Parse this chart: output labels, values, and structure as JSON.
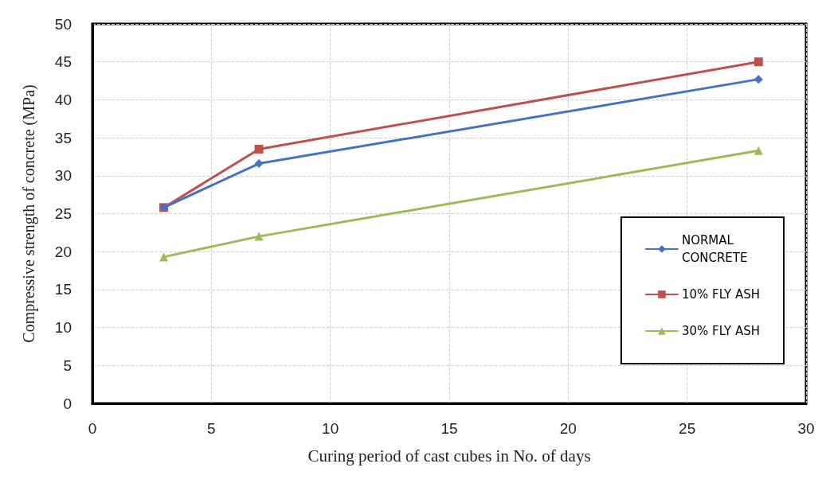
{
  "chart_data": {
    "type": "line",
    "xlabel": "Curing period of cast cubes in No. of days",
    "ylabel": "Compressive strength of concrete (MPa)",
    "x": [
      3,
      7,
      28
    ],
    "series": [
      {
        "name": "NORMAL\nCONCRETE",
        "color": "#4472c4",
        "values": [
          25.8,
          31.6,
          42.7
        ],
        "marker": "diamond"
      },
      {
        "name": "10% FLY ASH",
        "color": "#c0504d",
        "values": [
          25.8,
          33.5,
          45.0
        ],
        "marker": "square"
      },
      {
        "name": "30% FLY ASH",
        "color": "#9bbb59",
        "values": [
          19.3,
          22.0,
          33.3
        ],
        "marker": "triangle"
      }
    ],
    "xlim": [
      0,
      30
    ],
    "xticks": [
      0,
      5,
      10,
      15,
      20,
      25,
      30
    ],
    "ylim": [
      0,
      50
    ],
    "yticks": [
      0,
      5,
      10,
      15,
      20,
      25,
      30,
      35,
      40,
      45,
      50
    ],
    "grid": true,
    "legend": "right",
    "line_style": "solid"
  }
}
